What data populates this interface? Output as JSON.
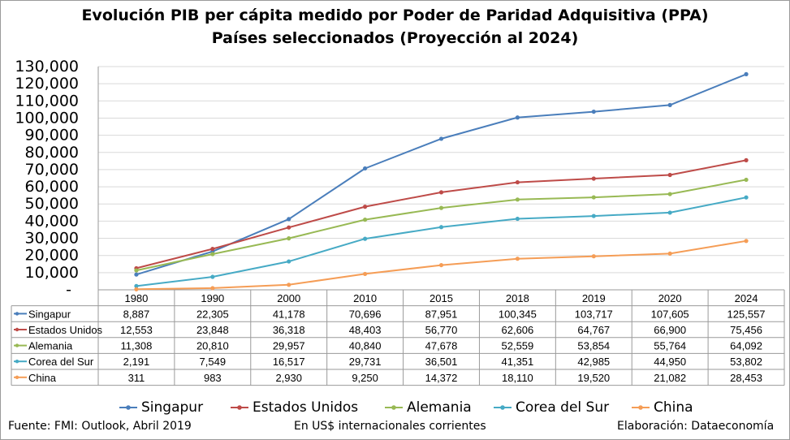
{
  "title_line1": "Evolución PIB per cápita medido por Poder de Paridad Adquisitiva (PPA)",
  "title_line2": "Países seleccionados (Proyección al 2024)",
  "footer": {
    "source": "Fuente: FMI: Outlook, Abril 2019",
    "units": "En US$ internacionales corrientes",
    "credit": "Elaboración: Dataeconomía"
  },
  "chart_data": {
    "type": "line",
    "categories": [
      "1980",
      "1990",
      "2000",
      "2010",
      "2015",
      "2018",
      "2019",
      "2020",
      "2024"
    ],
    "y_ticks": [
      "-",
      "10,000",
      "20,000",
      "30,000",
      "40,000",
      "50,000",
      "60,000",
      "70,000",
      "80,000",
      "90,000",
      "100,000",
      "110,000",
      "120,000",
      "130,000"
    ],
    "ylim": [
      0,
      130000
    ],
    "grid": true,
    "legend_position": "bottom",
    "data_table": true,
    "series": [
      {
        "name": "Singapur",
        "color": "#4a7ebb",
        "values": [
          8887,
          22305,
          41178,
          70696,
          87951,
          100345,
          103717,
          107605,
          125557
        ],
        "labels": [
          "8,887",
          "22,305",
          "41,178",
          "70,696",
          "87,951",
          "100,345",
          "103,717",
          "107,605",
          "125,557"
        ]
      },
      {
        "name": "Estados Unidos",
        "color": "#be4b48",
        "values": [
          12553,
          23848,
          36318,
          48403,
          56770,
          62606,
          64767,
          66900,
          75456
        ],
        "labels": [
          "12,553",
          "23,848",
          "36,318",
          "48,403",
          "56,770",
          "62,606",
          "64,767",
          "66,900",
          "75,456"
        ]
      },
      {
        "name": "Alemania",
        "color": "#98b954",
        "values": [
          11308,
          20810,
          29957,
          40840,
          47678,
          52559,
          53854,
          55764,
          64092
        ],
        "labels": [
          "11,308",
          "20,810",
          "29,957",
          "40,840",
          "47,678",
          "52,559",
          "53,854",
          "55,764",
          "64,092"
        ]
      },
      {
        "name": "Corea del Sur",
        "color": "#46aac5",
        "values": [
          2191,
          7549,
          16517,
          29731,
          36501,
          41351,
          42985,
          44950,
          53802
        ],
        "labels": [
          "2,191",
          "7,549",
          "16,517",
          "29,731",
          "36,501",
          "41,351",
          "42,985",
          "44,950",
          "53,802"
        ]
      },
      {
        "name": "China",
        "color": "#f59d56",
        "values": [
          311,
          983,
          2930,
          9250,
          14372,
          18110,
          19520,
          21082,
          28453
        ],
        "labels": [
          "311",
          "983",
          "2,930",
          "9,250",
          "14,372",
          "18,110",
          "19,520",
          "21,082",
          "28,453"
        ]
      }
    ]
  }
}
